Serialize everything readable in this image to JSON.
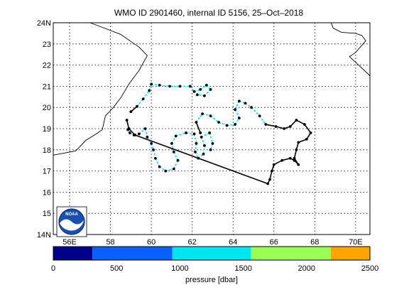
{
  "title": "WMO ID 2901460, internal ID 5156, 25–Oct–2018",
  "map": {
    "lat_labels": [
      {
        "value": 14,
        "label": "14N"
      },
      {
        "value": 15,
        "label": "15"
      },
      {
        "value": 16,
        "label": "16"
      },
      {
        "value": 17,
        "label": "17"
      },
      {
        "value": 18,
        "label": "18"
      },
      {
        "value": 19,
        "label": "19"
      },
      {
        "value": 20,
        "label": "20"
      },
      {
        "value": 21,
        "label": "21"
      },
      {
        "value": 22,
        "label": "22"
      },
      {
        "value": 23,
        "label": "23"
      },
      {
        "value": 24,
        "label": "24N"
      }
    ],
    "lon_labels": [
      {
        "value": 56,
        "label": "56E"
      },
      {
        "value": 58,
        "label": "58"
      },
      {
        "value": 60,
        "label": "60"
      },
      {
        "value": 62,
        "label": "62"
      },
      {
        "value": 64,
        "label": "64"
      },
      {
        "value": 66,
        "label": "66"
      },
      {
        "value": 68,
        "label": "68"
      },
      {
        "value": 70,
        "label": "70E"
      }
    ],
    "lon_range": [
      55.2,
      70.7
    ],
    "lat_range": [
      14,
      24
    ],
    "grid": true,
    "track_color": "#000000",
    "track_segment_color": "#00e5ee",
    "coast_oman": [
      [
        55.2,
        17.75
      ],
      [
        56.3,
        17.95
      ],
      [
        56.8,
        18.45
      ],
      [
        57.3,
        18.75
      ],
      [
        57.6,
        18.95
      ],
      [
        57.75,
        19.6
      ],
      [
        58.1,
        19.95
      ],
      [
        58.5,
        20.45
      ],
      [
        58.9,
        21.1
      ],
      [
        59.4,
        21.75
      ],
      [
        59.8,
        22.45
      ],
      [
        59.4,
        22.85
      ],
      [
        58.5,
        23.45
      ],
      [
        57.7,
        23.75
      ],
      [
        57.0,
        24.0
      ]
    ],
    "coast_pakistan": [
      [
        68.8,
        24.0
      ],
      [
        68.9,
        23.75
      ],
      [
        69.3,
        23.55
      ],
      [
        70.0,
        23.5
      ],
      [
        70.3,
        23.4
      ],
      [
        70.5,
        23.15
      ],
      [
        70.0,
        22.6
      ],
      [
        69.7,
        22.4
      ],
      [
        70.7,
        21.5
      ]
    ],
    "track": [
      [
        58.85,
        18.95
      ],
      [
        58.95,
        18.8
      ],
      [
        59.15,
        18.7
      ],
      [
        59.4,
        18.75
      ],
      [
        59.7,
        19.0
      ],
      [
        59.8,
        18.6
      ],
      [
        60.0,
        18.3
      ],
      [
        60.1,
        18.0
      ],
      [
        60.2,
        17.6
      ],
      [
        60.4,
        17.2
      ],
      [
        60.7,
        17.0
      ],
      [
        61.1,
        17.1
      ],
      [
        61.3,
        17.5
      ],
      [
        61.1,
        17.9
      ],
      [
        61.0,
        18.3
      ],
      [
        61.2,
        18.65
      ],
      [
        61.7,
        18.8
      ],
      [
        62.1,
        18.75
      ],
      [
        62.2,
        18.3
      ],
      [
        62.15,
        17.9
      ],
      [
        62.3,
        17.6
      ],
      [
        62.55,
        17.8
      ],
      [
        62.6,
        18.2
      ],
      [
        62.45,
        18.6
      ],
      [
        62.85,
        18.8
      ],
      [
        63.0,
        18.3
      ],
      [
        62.9,
        18.0
      ],
      [
        62.4,
        18.8
      ],
      [
        62.2,
        19.3
      ],
      [
        62.5,
        19.7
      ],
      [
        62.9,
        19.6
      ],
      [
        63.3,
        19.3
      ],
      [
        63.7,
        19.15
      ],
      [
        64.1,
        19.2
      ],
      [
        64.3,
        19.5
      ],
      [
        64.1,
        19.9
      ],
      [
        64.3,
        20.3
      ],
      [
        64.6,
        20.2
      ],
      [
        64.9,
        20.0
      ],
      [
        65.3,
        19.6
      ],
      [
        65.6,
        19.2
      ],
      [
        66.1,
        19.1
      ],
      [
        66.5,
        19.0
      ],
      [
        66.8,
        19.1
      ],
      [
        67.1,
        19.4
      ],
      [
        67.5,
        19.2
      ],
      [
        67.8,
        18.8
      ],
      [
        67.6,
        18.5
      ],
      [
        67.2,
        18.35
      ],
      [
        67.1,
        18.0
      ],
      [
        67.0,
        17.6
      ],
      [
        67.2,
        17.3
      ],
      [
        67.0,
        17.5
      ],
      [
        66.8,
        17.6
      ],
      [
        66.4,
        17.5
      ],
      [
        66.0,
        17.3
      ],
      [
        65.9,
        17.0
      ],
      [
        65.8,
        16.6
      ],
      [
        65.7,
        16.4
      ],
      [
        59.2,
        18.7
      ],
      [
        58.9,
        19.0
      ],
      [
        58.8,
        19.4
      ],
      [
        59.0,
        19.8
      ],
      [
        59.3,
        20.05
      ],
      [
        59.6,
        20.4
      ],
      [
        59.9,
        20.8
      ],
      [
        60.0,
        21.1
      ],
      [
        60.4,
        21.05
      ],
      [
        60.9,
        21.0
      ],
      [
        61.4,
        21.0
      ],
      [
        61.9,
        21.0
      ],
      [
        62.1,
        20.75
      ],
      [
        62.4,
        20.85
      ],
      [
        62.7,
        21.05
      ],
      [
        62.9,
        20.85
      ],
      [
        62.6,
        20.55
      ],
      [
        62.25,
        20.6
      ]
    ],
    "track_cyan_ranges": [
      [
        0,
        26
      ],
      [
        28,
        40
      ],
      [
        63,
        76
      ]
    ]
  },
  "colorbar": {
    "label": "pressure [dbar]",
    "ticks": [
      {
        "value": 0,
        "label": "0"
      },
      {
        "value": 500,
        "label": "500"
      },
      {
        "value": 1000,
        "label": "1000"
      },
      {
        "value": 1500,
        "label": "1500"
      },
      {
        "value": 2000,
        "label": "2000"
      },
      {
        "value": 2500,
        "label": "2500"
      }
    ],
    "range": [
      0,
      2500
    ],
    "bands": [
      {
        "from": 0,
        "to": 310,
        "color": "#000088"
      },
      {
        "from": 310,
        "to": 940,
        "color": "#0a5fff"
      },
      {
        "from": 940,
        "to": 1560,
        "color": "#00e5ee"
      },
      {
        "from": 1560,
        "to": 2190,
        "color": "#99ff55"
      },
      {
        "from": 2190,
        "to": 2500,
        "color": "#ffa500"
      }
    ]
  },
  "logo": {
    "text": "NOAA"
  }
}
